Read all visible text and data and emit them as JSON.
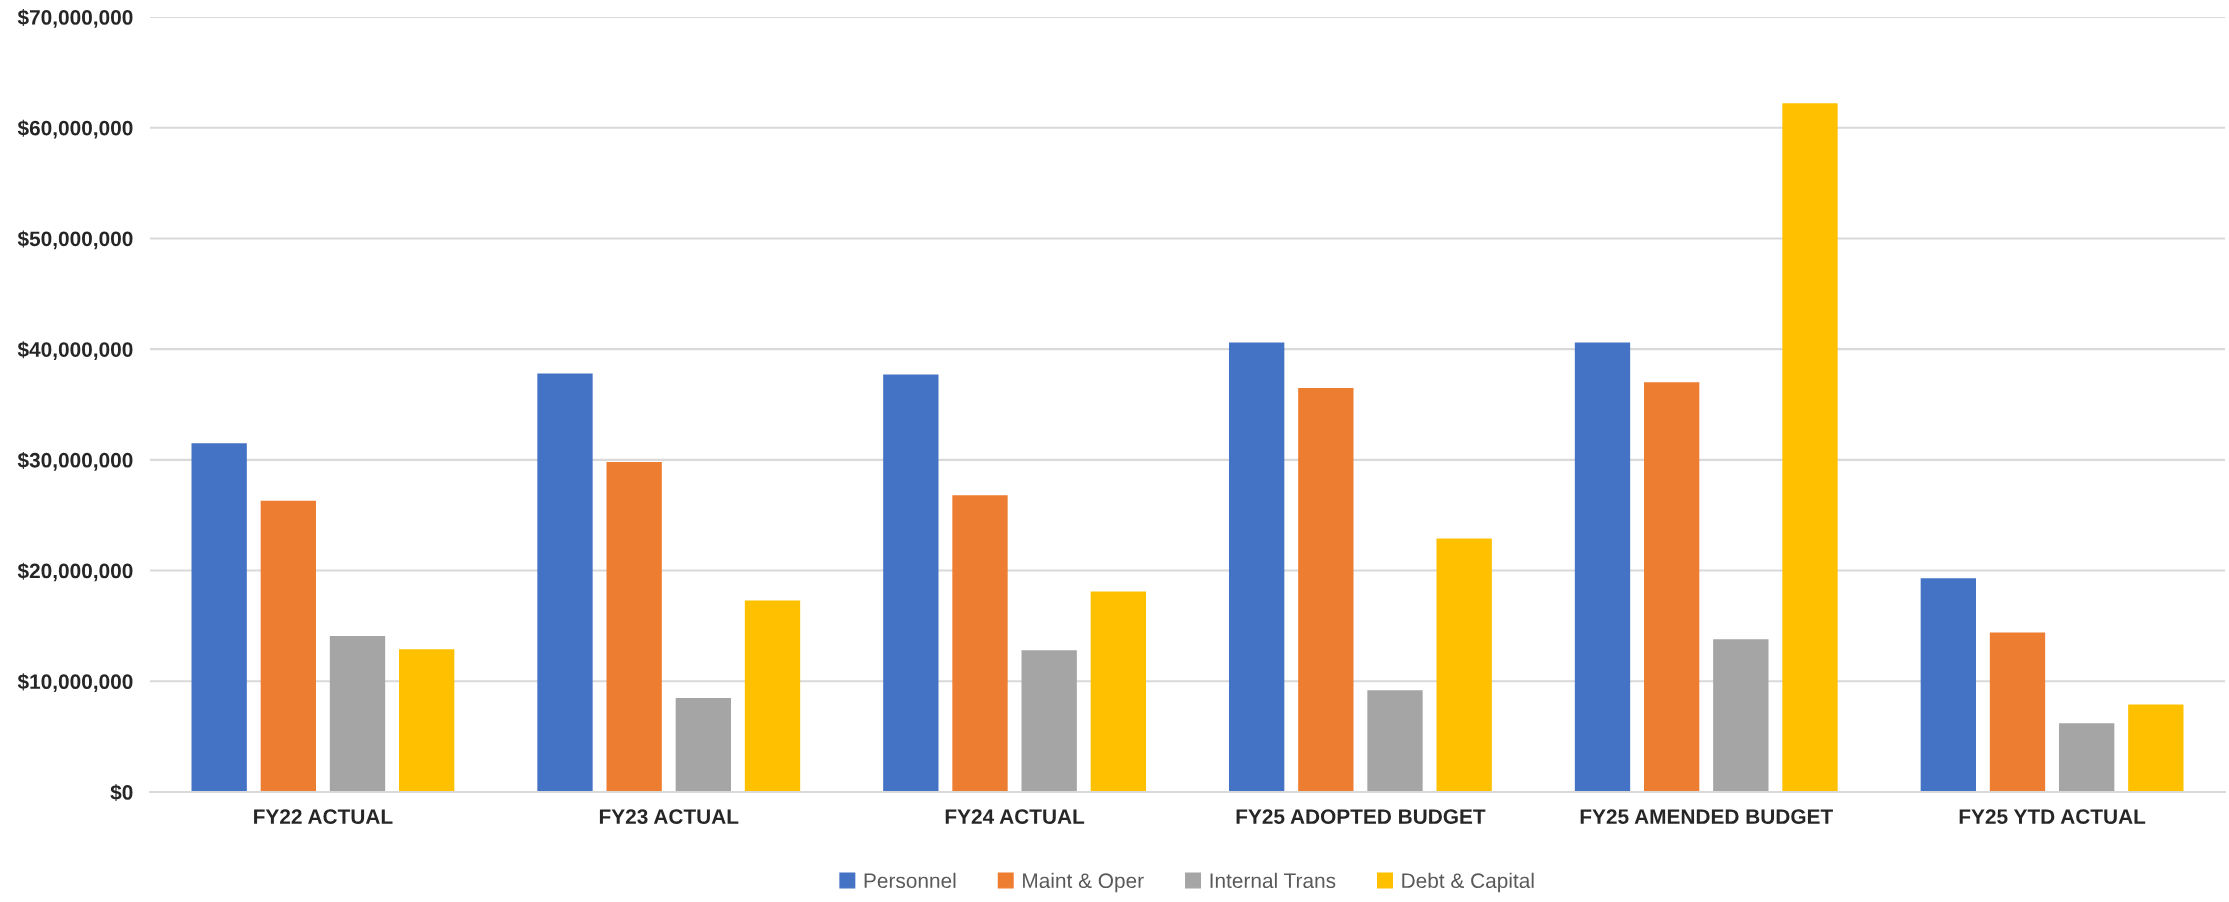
{
  "chart_data": {
    "type": "bar",
    "categories": [
      "FY22 ACTUAL",
      "FY23 ACTUAL",
      "FY24 ACTUAL",
      "FY25 ADOPTED BUDGET",
      "FY25 AMENDED BUDGET",
      "FY25 YTD ACTUAL"
    ],
    "series": [
      {
        "name": "Personnel",
        "color": "#4472c4",
        "values": [
          31500000,
          37800000,
          37700000,
          40600000,
          40600000,
          19300000
        ]
      },
      {
        "name": "Maint & Oper",
        "color": "#ed7d31",
        "values": [
          26300000,
          29800000,
          26800000,
          36500000,
          37000000,
          14400000
        ]
      },
      {
        "name": "Internal Trans",
        "color": "#a5a5a5",
        "values": [
          14100000,
          8500000,
          12800000,
          9200000,
          13800000,
          6200000
        ]
      },
      {
        "name": "Debt & Capital",
        "color": "#ffc000",
        "values": [
          12900000,
          17300000,
          18100000,
          22900000,
          62200000,
          7900000
        ]
      }
    ],
    "ylim": [
      0,
      70000000
    ],
    "yticks": [
      {
        "value": 0,
        "label": "$0"
      },
      {
        "value": 10000000,
        "label": "$10,000,000"
      },
      {
        "value": 20000000,
        "label": "$20,000,000"
      },
      {
        "value": 30000000,
        "label": "$30,000,000"
      },
      {
        "value": 40000000,
        "label": "$40,000,000"
      },
      {
        "value": 50000000,
        "label": "$50,000,000"
      },
      {
        "value": 60000000,
        "label": "$60,000,000"
      },
      {
        "value": 70000000,
        "label": "$70,000,000"
      }
    ],
    "grid": "y",
    "legend": "bottom"
  }
}
